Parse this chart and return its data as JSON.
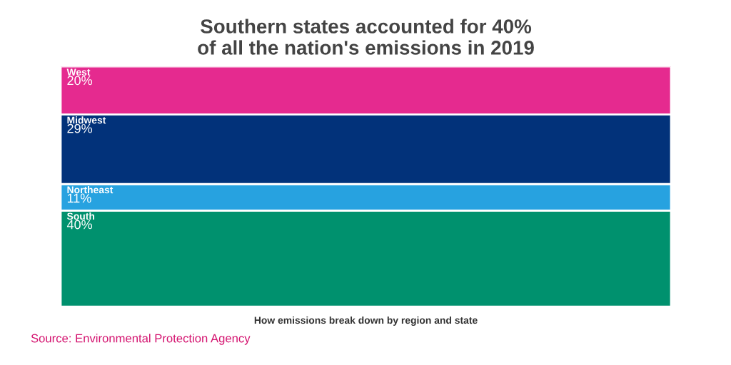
{
  "chart_data": {
    "type": "bar",
    "stacked": true,
    "title": "Southern states accounted for 40%\nof all the nation's emissions in 2019",
    "xlabel": "How emissions break down by region and state",
    "categories": [
      null
    ],
    "tick_labels": false,
    "legend": false,
    "grid": false,
    "series": [
      {
        "name": "South",
        "color": "#00916e",
        "values": [
          40
        ],
        "value_labels": [
          "40%"
        ]
      },
      {
        "name": "Northeast",
        "color": "#27a2e0",
        "values": [
          11
        ],
        "value_labels": [
          "11%"
        ]
      },
      {
        "name": "Midwest",
        "color": "#02327a",
        "values": [
          29
        ],
        "value_labels": [
          "29%"
        ]
      },
      {
        "name": "West",
        "color": "#e52a8f",
        "values": [
          20
        ],
        "value_labels": [
          "20%"
        ]
      }
    ],
    "annotations": [
      "Source: Environmental Protection Agency"
    ]
  }
}
